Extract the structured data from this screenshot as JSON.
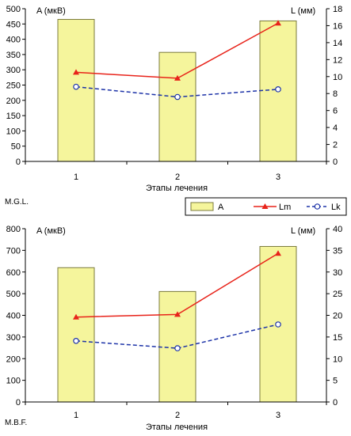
{
  "legend": {
    "items": [
      {
        "label": "A",
        "kind": "bar"
      },
      {
        "label": "Lm",
        "kind": "line-triangle"
      },
      {
        "label": "Lk",
        "kind": "dashed-circle"
      }
    ]
  },
  "colors": {
    "bar_fill": "#f5f59c",
    "bar_stroke": "#7a7a3c",
    "lm": "#e8231a",
    "lk": "#1d33a8",
    "axis": "#000000"
  },
  "chart_data": [
    {
      "type": "bar",
      "patient": "M.G.L.",
      "categories": [
        "1",
        "2",
        "3"
      ],
      "xlabel": "Этапы лечения",
      "ylabel_left": "A (мкВ)",
      "ylabel_right": "L (мм)",
      "ylim_left": [
        0,
        500
      ],
      "yticks_left": [
        0,
        50,
        100,
        150,
        200,
        250,
        300,
        350,
        400,
        450,
        500
      ],
      "ylim_right": [
        0,
        18
      ],
      "yticks_right": [
        0,
        2,
        4,
        6,
        8,
        10,
        12,
        14,
        16,
        18
      ],
      "series": [
        {
          "name": "A",
          "axis": "left",
          "style": "bar",
          "values": [
            465,
            357,
            460
          ]
        },
        {
          "name": "Lm",
          "axis": "right",
          "style": "line-triangle",
          "values": [
            10.5,
            9.8,
            16.3
          ]
        },
        {
          "name": "Lk",
          "axis": "right",
          "style": "dashed-circle",
          "values": [
            8.8,
            7.6,
            8.5
          ]
        }
      ]
    },
    {
      "type": "bar",
      "patient": "M.B.F.",
      "categories": [
        "1",
        "2",
        "3"
      ],
      "xlabel": "Этапы лечения",
      "ylabel_left": "A (мкВ)",
      "ylabel_right": "L (мм)",
      "ylim_left": [
        0,
        800
      ],
      "yticks_left": [
        0,
        100,
        200,
        300,
        400,
        500,
        600,
        700,
        800
      ],
      "ylim_right": [
        0,
        40
      ],
      "yticks_right": [
        0,
        5,
        10,
        15,
        20,
        25,
        30,
        35,
        40
      ],
      "series": [
        {
          "name": "A",
          "axis": "left",
          "style": "bar",
          "values": [
            620,
            510,
            718
          ]
        },
        {
          "name": "Lm",
          "axis": "right",
          "style": "line-triangle",
          "values": [
            19.6,
            20.2,
            34.3
          ]
        },
        {
          "name": "Lk",
          "axis": "right",
          "style": "dashed-circle",
          "values": [
            14.1,
            12.4,
            17.9
          ]
        }
      ]
    }
  ]
}
